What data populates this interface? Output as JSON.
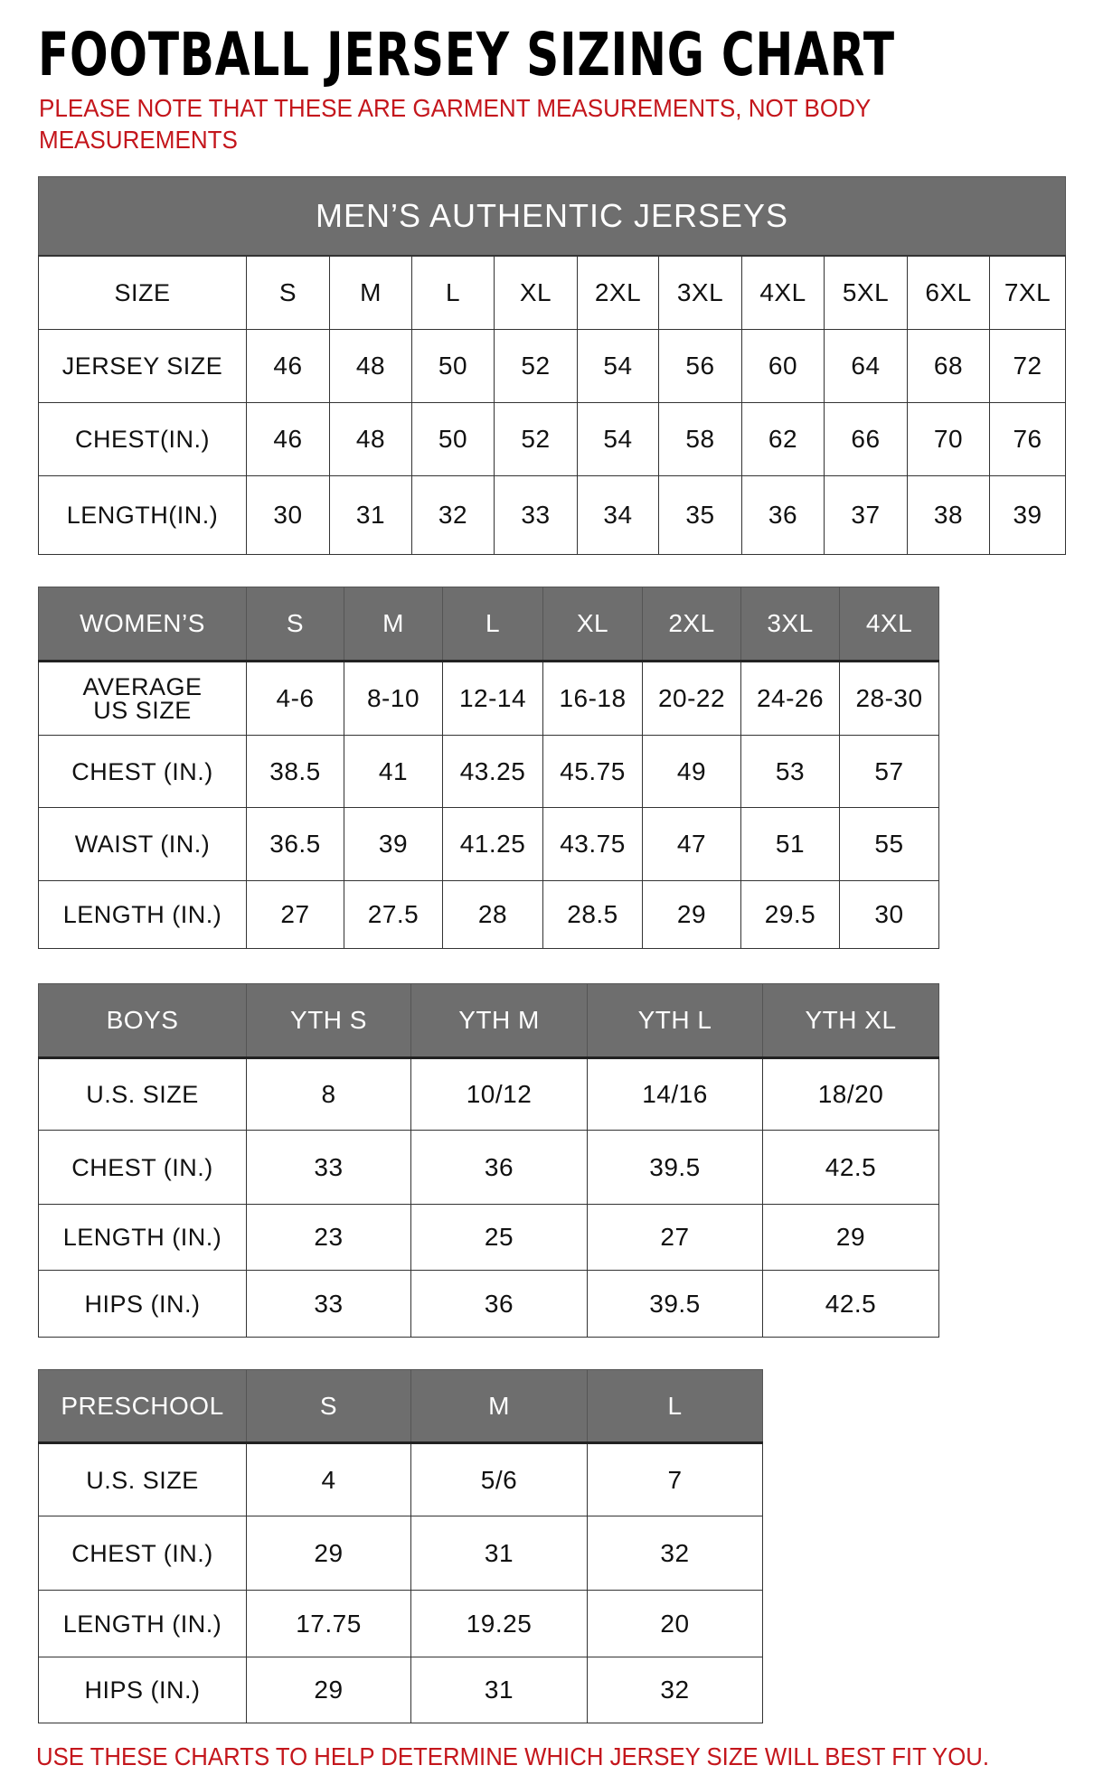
{
  "title": "FOOTBALL JERSEY SIZING CHART",
  "note": "PLEASE NOTE THAT THESE ARE GARMENT MEASUREMENTS, NOT BODY MEASUREMENTS",
  "footer": "USE THESE CHARTS TO HELP DETERMINE WHICH JERSEY SIZE WILL BEST FIT YOU.",
  "colors": {
    "header_bg": "#6e6e6e",
    "note_red": "#c4161c"
  },
  "tables": [
    {
      "id": "mens",
      "band": "MEN’S AUTHENTIC JERSEYS",
      "header": null,
      "rows": [
        {
          "label": "SIZE",
          "values": [
            "S",
            "M",
            "L",
            "XL",
            "2XL",
            "3XL",
            "4XL",
            "5XL",
            "6XL",
            "7XL"
          ]
        },
        {
          "label": "JERSEY SIZE",
          "values": [
            "46",
            "48",
            "50",
            "52",
            "54",
            "56",
            "60",
            "64",
            "68",
            "72"
          ]
        },
        {
          "label": "CHEST(IN.)",
          "values": [
            "46",
            "48",
            "50",
            "52",
            "54",
            "58",
            "62",
            "66",
            "70",
            "76"
          ]
        },
        {
          "label": "LENGTH(IN.)",
          "values": [
            "30",
            "31",
            "32",
            "33",
            "34",
            "35",
            "36",
            "37",
            "38",
            "39"
          ]
        }
      ]
    },
    {
      "id": "womens",
      "band": null,
      "header": {
        "label": "WOMEN’S",
        "values": [
          "S",
          "M",
          "L",
          "XL",
          "2XL",
          "3XL",
          "4XL"
        ]
      },
      "rows": [
        {
          "label": "AVERAGE US SIZE",
          "values": [
            "4-6",
            "8-10",
            "12-14",
            "16-18",
            "20-22",
            "24-26",
            "28-30"
          ]
        },
        {
          "label": "CHEST (IN.)",
          "values": [
            "38.5",
            "41",
            "43.25",
            "45.75",
            "49",
            "53",
            "57"
          ]
        },
        {
          "label": "WAIST (IN.)",
          "values": [
            "36.5",
            "39",
            "41.25",
            "43.75",
            "47",
            "51",
            "55"
          ]
        },
        {
          "label": "LENGTH (IN.)",
          "values": [
            "27",
            "27.5",
            "28",
            "28.5",
            "29",
            "29.5",
            "30"
          ]
        }
      ]
    },
    {
      "id": "boys",
      "band": null,
      "header": {
        "label": "BOYS",
        "values": [
          "YTH S",
          "YTH M",
          "YTH L",
          "YTH XL"
        ]
      },
      "rows": [
        {
          "label": "U.S. SIZE",
          "values": [
            "8",
            "10/12",
            "14/16",
            "18/20"
          ]
        },
        {
          "label": "CHEST (IN.)",
          "values": [
            "33",
            "36",
            "39.5",
            "42.5"
          ]
        },
        {
          "label": "LENGTH (IN.)",
          "values": [
            "23",
            "25",
            "27",
            "29"
          ]
        },
        {
          "label": "HIPS (IN.)",
          "values": [
            "33",
            "36",
            "39.5",
            "42.5"
          ]
        }
      ]
    },
    {
      "id": "preschool",
      "band": null,
      "header": {
        "label": "PRESCHOOL",
        "values": [
          "S",
          "M",
          "L"
        ]
      },
      "rows": [
        {
          "label": "U.S. SIZE",
          "values": [
            "4",
            "5/6",
            "7"
          ]
        },
        {
          "label": "CHEST (IN.)",
          "values": [
            "29",
            "31",
            "32"
          ]
        },
        {
          "label": "LENGTH (IN.)",
          "values": [
            "17.75",
            "19.25",
            "20"
          ]
        },
        {
          "label": "HIPS (IN.)",
          "values": [
            "29",
            "31",
            "32"
          ]
        }
      ]
    }
  ]
}
